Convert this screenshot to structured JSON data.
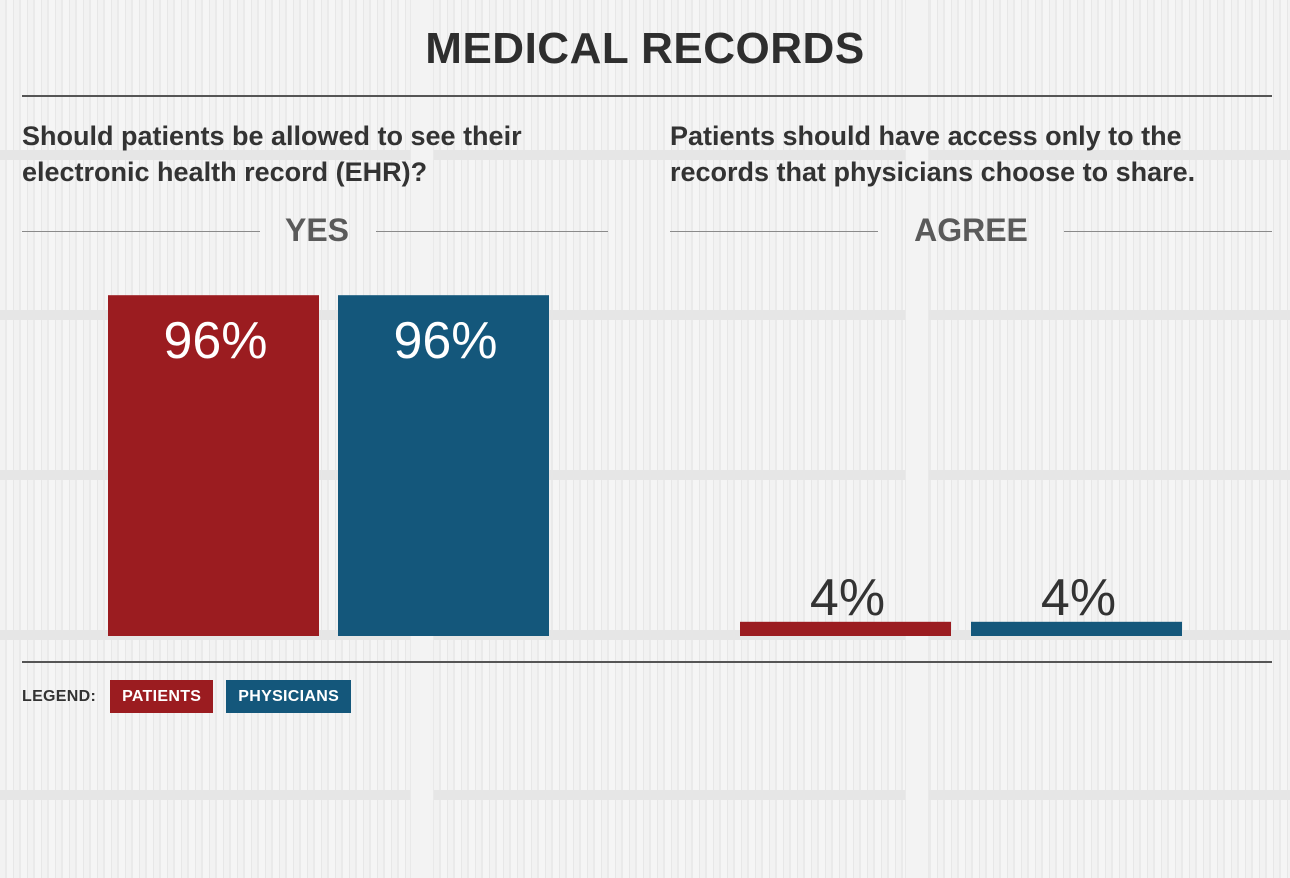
{
  "page": {
    "title": "MEDICAL RECORDS",
    "legend_title": "LEGEND:"
  },
  "chart_data": {
    "type": "bar",
    "title": "MEDICAL RECORDS",
    "ylim": [
      0,
      100
    ],
    "grid": false,
    "legend_placement": "bottom-left",
    "colors": {
      "patients": "#9b1c20",
      "physicians": "#14577b",
      "value_label": "#ffffff",
      "value_label_outside": "#333333"
    },
    "series_names": [
      "PATIENTS",
      "PHYSICIANS"
    ],
    "panels": [
      {
        "question": "Should patients be allowed to see their electronic health record (EHR)?",
        "category": "YES",
        "values": [
          96,
          96
        ],
        "labels": [
          "96%",
          "96%"
        ]
      },
      {
        "question": "Patients should have access only to the records that physicians choose to share.",
        "category": "AGREE",
        "values": [
          4,
          4
        ],
        "labels": [
          "4%",
          "4%"
        ]
      }
    ]
  }
}
